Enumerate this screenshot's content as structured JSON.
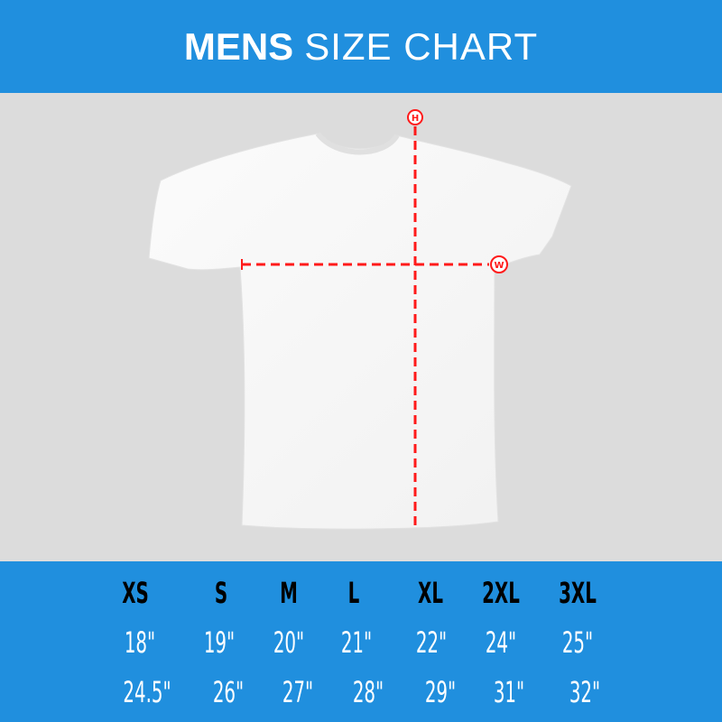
{
  "header": {
    "title_bold": "MENS",
    "title_rest": "SIZE CHART"
  },
  "diagram": {
    "height_marker": "H",
    "width_marker": "W",
    "marker_color": "#ff1a1a"
  },
  "colors": {
    "brand_blue": "#208fde",
    "background_gray": "#dcdcdc"
  },
  "table": {
    "sizes": [
      "XS",
      "S",
      "M",
      "L",
      "XL",
      "2XL",
      "3XL"
    ],
    "width_row": [
      "18\"",
      "19\"",
      "20\"",
      "21\"",
      "22\"",
      "24\"",
      "25\""
    ],
    "height_row": [
      "24.5\"",
      "26\"",
      "27\"",
      "28\"",
      "29\"",
      "31\"",
      "32\""
    ]
  }
}
